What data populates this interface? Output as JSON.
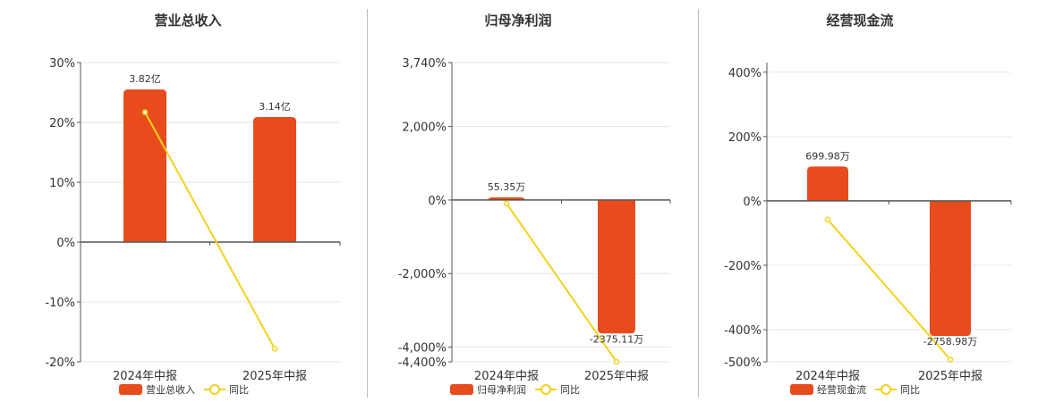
{
  "colors": {
    "bar": "#e84c1c",
    "line": "#f2d21b",
    "grid": "#e6e6f0",
    "axis": "#555555"
  },
  "chart_data": [
    {
      "type": "bar",
      "title": "营业总收入",
      "categories": [
        "2024年中报",
        "2025年中报"
      ],
      "series": [
        {
          "name": "营业总收入",
          "type": "bar",
          "values": [
            25.5,
            20.9
          ],
          "labels": [
            "3.82亿",
            "3.14亿"
          ]
        },
        {
          "name": "同比",
          "type": "line",
          "values": [
            21.7,
            -17.8
          ]
        }
      ],
      "yticks": [
        "30%",
        "20%",
        "10%",
        "0%",
        "-10%",
        "-20%"
      ],
      "ylim": [
        -20,
        30
      ],
      "grid": true,
      "legend": "bottom"
    },
    {
      "type": "bar",
      "title": "归母净利润",
      "categories": [
        "2024年中报",
        "2025年中报"
      ],
      "series": [
        {
          "name": "归母净利润",
          "type": "bar",
          "values": [
            75,
            -3630
          ],
          "labels": [
            "55.35万",
            "-2375.11万"
          ]
        },
        {
          "name": "同比",
          "type": "line",
          "values": [
            -90,
            -4400
          ]
        }
      ],
      "yticks": [
        "3,740%",
        "2,000%",
        "0%",
        "-2,000%",
        "-4,000%",
        "-4,400%"
      ],
      "ylim": [
        -4400,
        3740
      ],
      "grid": true,
      "legend": "bottom"
    },
    {
      "type": "bar",
      "title": "经营现金流",
      "categories": [
        "2024年中报",
        "2025年中报"
      ],
      "series": [
        {
          "name": "经营现金流",
          "type": "bar",
          "values": [
            107,
            -420
          ],
          "labels": [
            "699.98万",
            "-2758.98万"
          ]
        },
        {
          "name": "同比",
          "type": "line",
          "values": [
            -58,
            -493
          ]
        }
      ],
      "yticks": [
        "400%",
        "200%",
        "0%",
        "-200%",
        "-400%",
        "-500%"
      ],
      "ylim": [
        -500,
        430
      ],
      "grid": true,
      "legend": "bottom"
    }
  ]
}
